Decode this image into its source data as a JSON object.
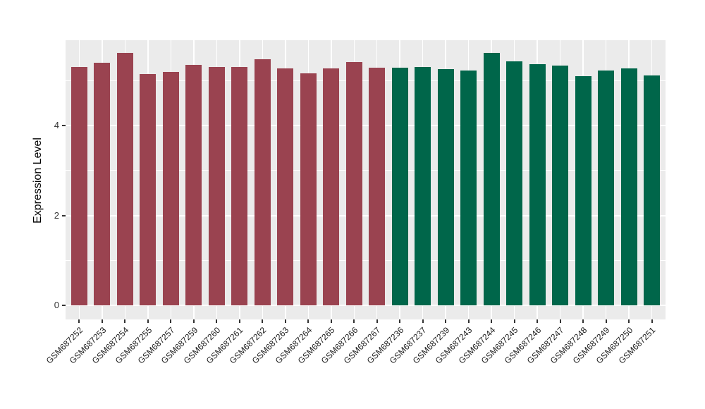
{
  "figure": {
    "background": "#ffffff",
    "panel_background": "#ebebeb",
    "grid_color": "#ffffff",
    "tick_color": "#333333",
    "axis_text_color": "#333333",
    "axis_title_color": "#000000"
  },
  "chart_data": {
    "type": "bar",
    "title": "",
    "xlabel": "",
    "ylabel": "Expression Level",
    "ylim": [
      -0.31,
      5.9
    ],
    "y_ticks": [
      0,
      2,
      4
    ],
    "y_minor_gridlines": [
      1,
      3,
      5
    ],
    "grid": "on",
    "legend_position": "none",
    "x_tick_rotation_deg": 45,
    "bar_width_fraction": 0.7,
    "categories": [
      "GSM687252",
      "GSM687253",
      "GSM687254",
      "GSM687255",
      "GSM687257",
      "GSM687259",
      "GSM687260",
      "GSM687261",
      "GSM687262",
      "GSM687263",
      "GSM687264",
      "GSM687265",
      "GSM687266",
      "GSM687267",
      "GSM687236",
      "GSM687237",
      "GSM687239",
      "GSM687243",
      "GSM687244",
      "GSM687245",
      "GSM687246",
      "GSM687247",
      "GSM687248",
      "GSM687249",
      "GSM687250",
      "GSM687251"
    ],
    "values": [
      5.31,
      5.4,
      5.62,
      5.15,
      5.2,
      5.35,
      5.3,
      5.3,
      5.47,
      5.27,
      5.16,
      5.28,
      5.42,
      5.29,
      5.29,
      5.3,
      5.25,
      5.22,
      5.61,
      5.43,
      5.36,
      5.33,
      5.1,
      5.22,
      5.27,
      5.11
    ],
    "bar_groups": [
      0,
      0,
      0,
      0,
      0,
      0,
      0,
      0,
      0,
      0,
      0,
      0,
      0,
      0,
      1,
      1,
      1,
      1,
      1,
      1,
      1,
      1,
      1,
      1,
      1,
      1
    ],
    "group_colors": [
      "#9A4350",
      "#00664A"
    ]
  }
}
